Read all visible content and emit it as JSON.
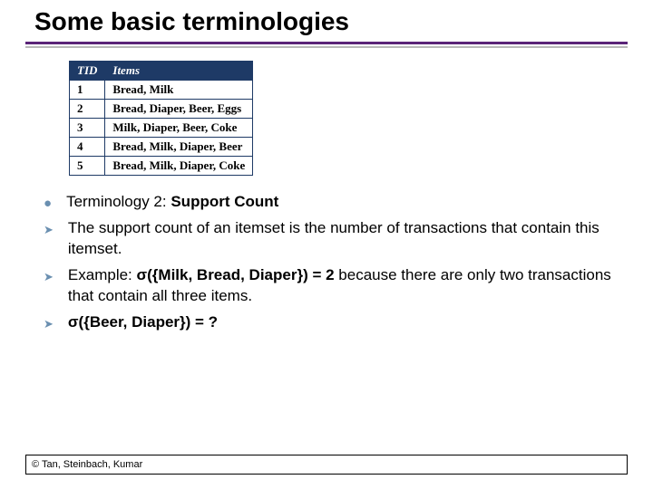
{
  "title": "Some basic terminologies",
  "table": {
    "headers": [
      "TID",
      "Items"
    ],
    "col_widths": [
      "28px",
      "auto"
    ],
    "header_bg": "#1e3a66",
    "header_fg": "#ffffff",
    "border_color": "#1e3a66",
    "cell_bg": "#ffffff",
    "font_family": "Times New Roman",
    "rows": [
      [
        "1",
        "Bread, Milk"
      ],
      [
        "2",
        "Bread, Diaper, Beer, Eggs"
      ],
      [
        "3",
        "Milk, Diaper, Beer, Coke"
      ],
      [
        "4",
        "Bread, Milk, Diaper, Beer"
      ],
      [
        "5",
        "Bread, Milk, Diaper, Coke"
      ]
    ]
  },
  "bullets": {
    "heading_prefix": "Terminology 2: ",
    "heading_bold": "Support Count",
    "item1": "The support count of an itemset is the number of transactions that contain this itemset.",
    "item2_pre": "Example: ",
    "item2_sigma": "σ({Milk, Bread, Diaper}) = 2",
    "item2_post": " because there are only two transactions that contain all three items.",
    "item3": "σ({Beer, Diaper}) = ?"
  },
  "footer": "© Tan, Steinbach, Kumar",
  "colors": {
    "rule_primary": "#5a2478",
    "rule_secondary": "#b8b8b8",
    "bullet": "#6a8fb0",
    "text": "#000000",
    "background": "#ffffff"
  },
  "fontsize": {
    "title": 28,
    "body": 17,
    "table": 13,
    "footer": 11
  }
}
